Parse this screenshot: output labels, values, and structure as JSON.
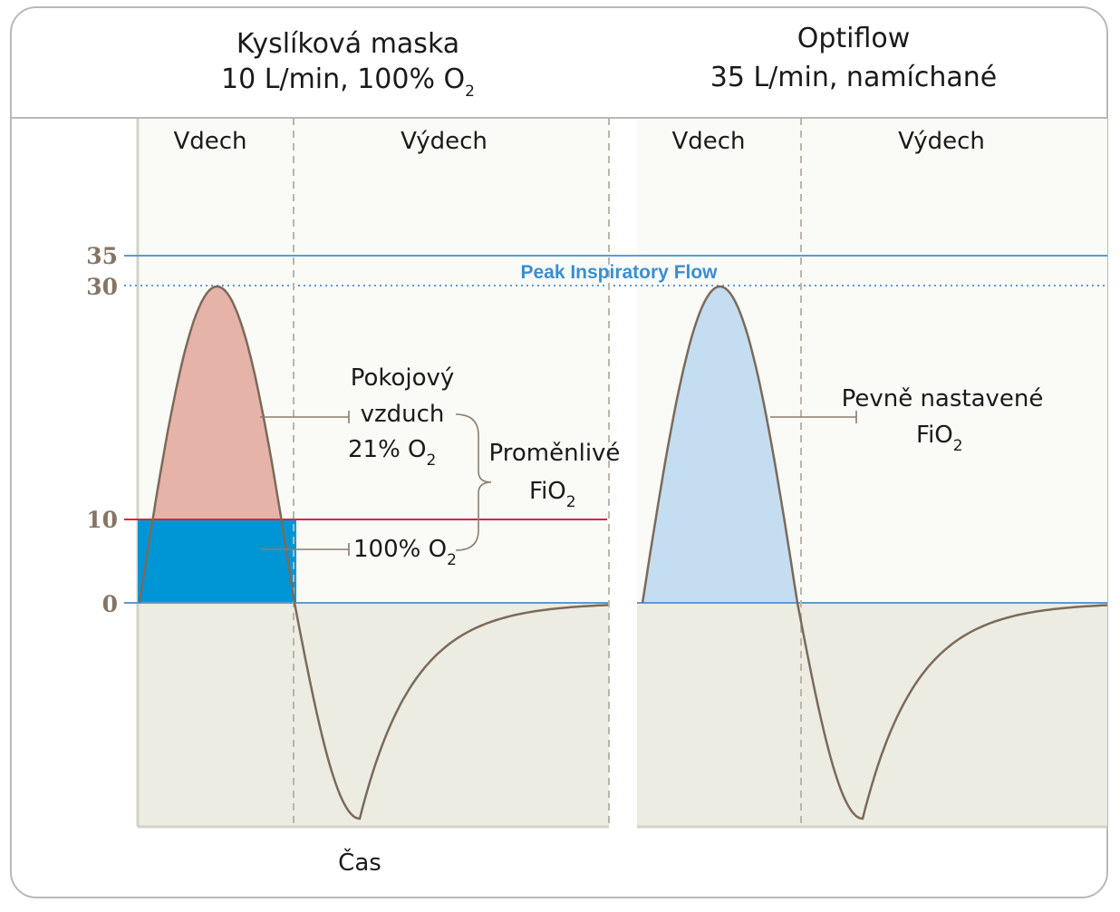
{
  "panels": [
    {
      "title_line1": "Kyslíková maska",
      "title_line2_prefix": "10 L/min, 100% O",
      "title_line2_sub": "2",
      "inhale_label": "Vdech",
      "exhale_label": "Výdech"
    },
    {
      "title_line1": "Optiflow",
      "title_line2": "35 L/min, namíchané",
      "inhale_label": "Vdech",
      "exhale_label": "Výdech"
    }
  ],
  "y_axis": {
    "ticks": [
      "35",
      "30",
      "10",
      "0"
    ]
  },
  "peak_label": "Peak Inspiratory Flow",
  "annotations": {
    "room_air_line1": "Pokojový",
    "room_air_line2": "vzduch",
    "room_air_line3_prefix": "21% O",
    "room_air_line3_sub": "2",
    "oxygen_prefix": "100% O",
    "oxygen_sub": "2",
    "variable_line1": "Proměnlivé",
    "variable_line2_prefix": "FiO",
    "variable_line2_sub": "2",
    "fixed_line1": "Pevně nastavené",
    "fixed_line2_prefix": "FiO",
    "fixed_line2_sub": "2"
  },
  "x_label": "Čas",
  "colors": {
    "room_air_fill": "#e6b3a8",
    "oxygen_fill": "#0096d6",
    "optiflow_fill": "#c5ddf0",
    "curve": "#7b6a5a",
    "blue_line": "#5b9bd5",
    "red_line": "#d9263a",
    "upper_bg": "#fafaf7",
    "lower_bg": "#ecece3"
  }
}
